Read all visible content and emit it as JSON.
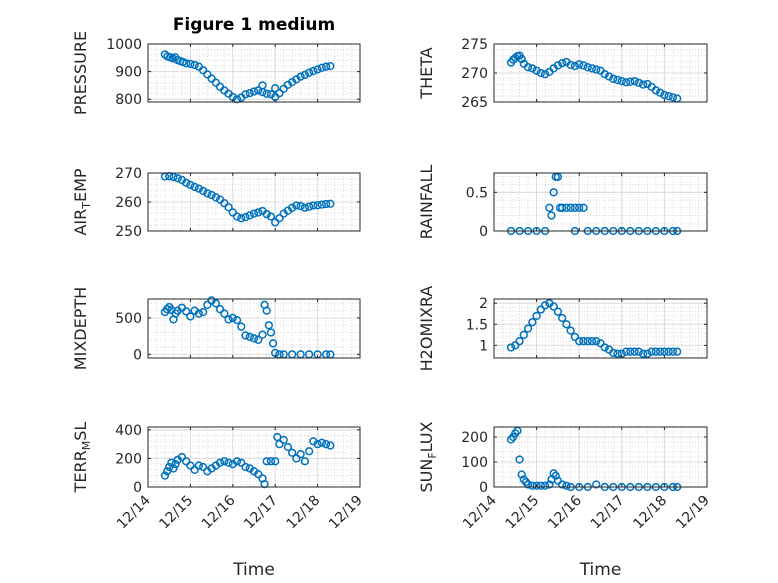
{
  "title": "Figure 1 medium",
  "marker_color": "#0072BD",
  "x_tick_labels": [
    "12/14",
    "12/15",
    "12/16",
    "12/17",
    "12/18",
    "12/19"
  ],
  "chart_data": [
    {
      "type": "scatter",
      "ylabel": "PRESSURE",
      "ylabel_parts": [
        {
          "t": "PRESSURE"
        }
      ],
      "xlim": [
        0,
        5
      ],
      "ylim": [
        790,
        1000
      ],
      "yticks": [
        800,
        900,
        1000
      ],
      "x": [
        0.4,
        0.46,
        0.52,
        0.58,
        0.64,
        0.7,
        0.76,
        0.82,
        0.9,
        1.0,
        1.1,
        1.2,
        1.3,
        1.4,
        1.5,
        1.6,
        1.7,
        1.8,
        1.9,
        2.0,
        2.1,
        2.2,
        2.3,
        2.4,
        2.5,
        2.6,
        2.7,
        2.8,
        2.9,
        3.0,
        3.1,
        3.2,
        3.3,
        3.4,
        3.5,
        3.6,
        3.7,
        3.8,
        3.9,
        4.0,
        4.1,
        4.2,
        4.3,
        2.7,
        3.0
      ],
      "y": [
        962,
        955,
        952,
        948,
        952,
        942,
        938,
        935,
        930,
        928,
        924,
        918,
        905,
        890,
        875,
        860,
        845,
        832,
        820,
        808,
        800,
        806,
        818,
        822,
        828,
        832,
        826,
        820,
        818,
        808,
        822,
        838,
        852,
        862,
        872,
        882,
        888,
        896,
        902,
        908,
        914,
        918,
        920,
        850,
        840
      ]
    },
    {
      "type": "scatter",
      "ylabel": "THETA",
      "ylabel_parts": [
        {
          "t": "THETA"
        }
      ],
      "xlim": [
        0,
        5
      ],
      "ylim": [
        265,
        275
      ],
      "yticks": [
        265,
        270,
        275
      ],
      "x": [
        0.4,
        0.45,
        0.5,
        0.55,
        0.6,
        0.65,
        0.7,
        0.8,
        0.9,
        1.0,
        1.1,
        1.2,
        1.3,
        1.4,
        1.5,
        1.6,
        1.7,
        1.8,
        1.9,
        2.0,
        2.1,
        2.2,
        2.3,
        2.4,
        2.5,
        2.6,
        2.7,
        2.8,
        2.9,
        3.0,
        3.1,
        3.2,
        3.3,
        3.4,
        3.5,
        3.6,
        3.7,
        3.8,
        3.9,
        4.0,
        4.1,
        4.2,
        4.3
      ],
      "y": [
        271.8,
        272.3,
        272.6,
        272.9,
        273.0,
        272.4,
        271.6,
        271.0,
        270.8,
        270.4,
        270.0,
        269.8,
        270.2,
        270.8,
        271.3,
        271.7,
        271.9,
        271.4,
        271.2,
        271.5,
        271.3,
        271.0,
        270.8,
        270.6,
        270.4,
        269.8,
        269.4,
        269.0,
        268.8,
        268.6,
        268.4,
        268.5,
        268.6,
        268.3,
        268.0,
        268.1,
        267.6,
        267.0,
        266.6,
        266.2,
        266.0,
        265.8,
        265.6
      ]
    },
    {
      "type": "scatter",
      "ylabel": "AIR_TEMP",
      "ylabel_parts": [
        {
          "t": "AIR"
        },
        {
          "t": "T",
          "sub": true
        },
        {
          "t": "EMP"
        }
      ],
      "xlim": [
        0,
        5
      ],
      "ylim": [
        250,
        270
      ],
      "yticks": [
        250,
        260,
        270
      ],
      "x": [
        0.4,
        0.5,
        0.6,
        0.7,
        0.8,
        0.9,
        1.0,
        1.1,
        1.2,
        1.3,
        1.4,
        1.5,
        1.6,
        1.7,
        1.8,
        1.9,
        2.0,
        2.1,
        2.2,
        2.3,
        2.4,
        2.5,
        2.6,
        2.7,
        2.8,
        2.9,
        3.0,
        3.1,
        3.2,
        3.3,
        3.4,
        3.5,
        3.6,
        3.7,
        3.8,
        3.9,
        4.0,
        4.1,
        4.2,
        4.3
      ],
      "y": [
        268.8,
        268.9,
        268.6,
        268.2,
        267.6,
        266.6,
        265.9,
        265.2,
        264.6,
        263.8,
        263.0,
        262.4,
        261.6,
        260.8,
        259.6,
        258.2,
        256.4,
        255.0,
        254.4,
        254.8,
        255.4,
        256.0,
        256.4,
        256.9,
        255.8,
        255.0,
        253.0,
        254.4,
        256.0,
        257.0,
        258.0,
        258.8,
        258.6,
        258.0,
        258.4,
        258.8,
        258.9,
        259.1,
        259.3,
        259.4
      ]
    },
    {
      "type": "scatter",
      "ylabel": "RAINFALL",
      "ylabel_parts": [
        {
          "t": "RAINFALL"
        }
      ],
      "xlim": [
        0,
        5
      ],
      "ylim": [
        0,
        0.75
      ],
      "yticks": [
        0,
        0.5
      ],
      "x": [
        0.4,
        0.6,
        0.8,
        1.0,
        1.2,
        1.3,
        1.4,
        1.45,
        1.5,
        1.55,
        1.6,
        1.7,
        1.8,
        1.9,
        2.0,
        2.1,
        1.35,
        1.9,
        2.2,
        2.4,
        2.6,
        2.8,
        3.0,
        3.2,
        3.4,
        3.6,
        3.8,
        4.0,
        4.2,
        4.3
      ],
      "y": [
        0,
        0,
        0,
        0,
        0,
        0.3,
        0.5,
        0.7,
        0.7,
        0.3,
        0.3,
        0.3,
        0.3,
        0.3,
        0.3,
        0.3,
        0.2,
        0,
        0,
        0,
        0,
        0,
        0,
        0,
        0,
        0,
        0,
        0,
        0,
        0
      ]
    },
    {
      "type": "scatter",
      "ylabel": "MIXDEPTH",
      "ylabel_parts": [
        {
          "t": "MIXDEPTH"
        }
      ],
      "xlim": [
        0,
        5
      ],
      "ylim": [
        -50,
        760
      ],
      "yticks": [
        0,
        500
      ],
      "x": [
        0.4,
        0.45,
        0.5,
        0.55,
        0.6,
        0.65,
        0.7,
        0.8,
        0.9,
        1.0,
        1.1,
        1.2,
        1.3,
        1.4,
        1.5,
        1.6,
        1.7,
        1.8,
        1.9,
        2.0,
        2.1,
        2.2,
        2.3,
        2.4,
        2.5,
        2.6,
        2.7,
        2.75,
        2.8,
        2.85,
        2.9,
        2.95,
        3.0,
        3.1,
        3.2,
        3.4,
        3.6,
        3.8,
        4.0,
        4.2,
        4.3
      ],
      "y": [
        580,
        620,
        650,
        610,
        480,
        560,
        600,
        640,
        590,
        520,
        600,
        560,
        580,
        680,
        740,
        700,
        620,
        560,
        480,
        500,
        470,
        380,
        260,
        240,
        220,
        200,
        270,
        680,
        600,
        400,
        300,
        150,
        20,
        0,
        0,
        0,
        0,
        0,
        0,
        0,
        0
      ]
    },
    {
      "type": "scatter",
      "ylabel": "H2OMIXRA",
      "ylabel_parts": [
        {
          "t": "H2OMIXRA"
        }
      ],
      "xlim": [
        0,
        5
      ],
      "ylim": [
        0.7,
        2.1
      ],
      "yticks": [
        1,
        1.5,
        2
      ],
      "x": [
        0.4,
        0.5,
        0.6,
        0.7,
        0.8,
        0.9,
        1.0,
        1.1,
        1.2,
        1.3,
        1.4,
        1.5,
        1.6,
        1.7,
        1.8,
        1.9,
        2.0,
        2.1,
        2.2,
        2.3,
        2.4,
        2.5,
        2.6,
        2.7,
        2.8,
        2.9,
        3.0,
        3.1,
        3.2,
        3.3,
        3.4,
        3.5,
        3.6,
        3.7,
        3.8,
        3.9,
        4.0,
        4.1,
        4.2,
        4.3
      ],
      "y": [
        0.95,
        1.0,
        1.1,
        1.25,
        1.4,
        1.55,
        1.7,
        1.85,
        1.95,
        2.0,
        1.92,
        1.8,
        1.65,
        1.5,
        1.35,
        1.2,
        1.1,
        1.1,
        1.1,
        1.1,
        1.1,
        1.05,
        0.95,
        0.9,
        0.82,
        0.8,
        0.8,
        0.85,
        0.85,
        0.85,
        0.85,
        0.8,
        0.8,
        0.85,
        0.85,
        0.85,
        0.85,
        0.85,
        0.85,
        0.85
      ]
    },
    {
      "type": "scatter",
      "ylabel": "TERR_MSL",
      "ylabel_parts": [
        {
          "t": "TERR"
        },
        {
          "t": "M",
          "sub": true
        },
        {
          "t": "SL"
        }
      ],
      "xlim": [
        0,
        5
      ],
      "ylim": [
        0,
        420
      ],
      "yticks": [
        0,
        200,
        400
      ],
      "x": [
        0.4,
        0.45,
        0.5,
        0.55,
        0.6,
        0.65,
        0.7,
        0.8,
        0.9,
        1.0,
        1.1,
        1.2,
        1.3,
        1.4,
        1.5,
        1.6,
        1.7,
        1.8,
        1.9,
        2.0,
        2.1,
        2.2,
        2.3,
        2.4,
        2.5,
        2.6,
        2.7,
        2.75,
        2.8,
        2.9,
        3.0,
        3.05,
        3.1,
        3.2,
        3.3,
        3.4,
        3.5,
        3.6,
        3.7,
        3.8,
        3.9,
        4.0,
        4.1,
        4.2,
        4.3
      ],
      "y": [
        80,
        110,
        140,
        170,
        130,
        160,
        190,
        210,
        180,
        150,
        120,
        150,
        140,
        110,
        130,
        150,
        170,
        180,
        170,
        160,
        180,
        170,
        140,
        130,
        110,
        90,
        60,
        20,
        180,
        180,
        180,
        350,
        300,
        330,
        280,
        240,
        200,
        230,
        180,
        250,
        320,
        300,
        310,
        300,
        290
      ]
    },
    {
      "type": "scatter",
      "ylabel": "SUN_FLUX",
      "ylabel_parts": [
        {
          "t": "SUN"
        },
        {
          "t": "F",
          "sub": true
        },
        {
          "t": "LUX"
        }
      ],
      "xlim": [
        0,
        5
      ],
      "ylim": [
        0,
        240
      ],
      "yticks": [
        0,
        100,
        200
      ],
      "x": [
        0.4,
        0.45,
        0.5,
        0.55,
        0.6,
        0.65,
        0.7,
        0.75,
        0.8,
        0.9,
        1.0,
        1.1,
        1.2,
        1.3,
        1.35,
        1.4,
        1.45,
        1.5,
        1.6,
        1.7,
        1.8,
        2.0,
        2.2,
        2.4,
        2.6,
        2.8,
        3.0,
        3.2,
        3.4,
        3.6,
        3.8,
        4.0,
        4.2,
        4.3
      ],
      "y": [
        190,
        200,
        215,
        225,
        110,
        50,
        30,
        20,
        10,
        5,
        5,
        5,
        5,
        10,
        30,
        55,
        45,
        25,
        10,
        5,
        0,
        0,
        0,
        10,
        0,
        0,
        0,
        0,
        0,
        0,
        0,
        0,
        0,
        0
      ]
    }
  ],
  "x_labels": {
    "left": "Time",
    "right": "Time"
  }
}
